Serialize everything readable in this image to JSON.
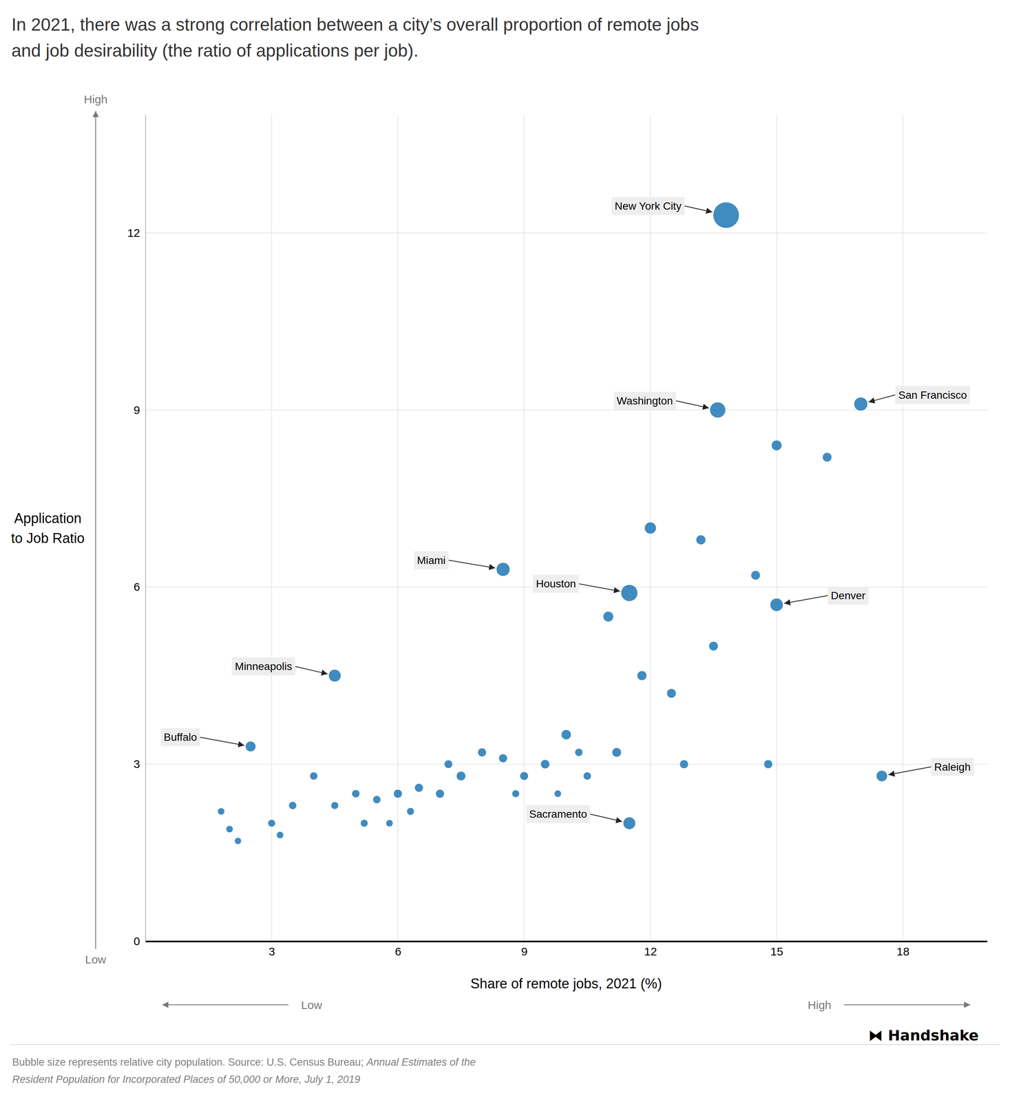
{
  "chart_data": {
    "type": "scatter",
    "title": [
      "In 2021, there was a strong correlation between a city’s overall proportion of remote jobs",
      "and job desirability (the ratio of applications per job)."
    ],
    "xlabel": "Share of remote jobs, 2021 (%)",
    "ylabel": [
      "Application",
      "to Job Ratio"
    ],
    "axis_end_labels": [
      "Low",
      "High"
    ],
    "credit": "⧓ Handshake",
    "note": [
      "Bubble size represents relative city population. Source: U.S. Census Bureau; ",
      "Annual Estimates of the",
      "Resident Population for Incorporated Places of 50,000 or More, July 1, 2019"
    ],
    "labels": [
      "New York City",
      "San Francisco",
      "Washington",
      "Miami",
      "Houston",
      "Denver",
      "Minneapolis",
      "Buffalo",
      "Sacramento",
      "Raleigh",
      null,
      null,
      null,
      null,
      null,
      null,
      null,
      null,
      null,
      null,
      null,
      null,
      null,
      null,
      null,
      null,
      null,
      null,
      null,
      null,
      null,
      null,
      null,
      null,
      null,
      null,
      null,
      null,
      null,
      null,
      null,
      null,
      null,
      null,
      null,
      null,
      null,
      null,
      null
    ],
    "x": [
      13.8,
      17.0,
      13.6,
      8.5,
      11.5,
      15.0,
      4.5,
      2.5,
      11.5,
      17.5,
      15.0,
      16.2,
      12.0,
      13.2,
      14.5,
      11.0,
      13.5,
      11.8,
      12.5,
      10.0,
      11.2,
      12.8,
      14.8,
      9.5,
      8.5,
      8.0,
      7.5,
      7.0,
      6.5,
      6.0,
      5.5,
      5.0,
      5.2,
      3.5,
      3.0,
      3.2,
      2.0,
      2.2,
      1.8,
      9.0,
      10.5,
      4.0,
      4.5,
      5.8,
      6.3,
      9.8,
      10.3,
      7.2,
      8.8
    ],
    "values": [
      12.3,
      9.1,
      9.0,
      6.3,
      5.9,
      5.7,
      4.5,
      3.3,
      2.0,
      2.8,
      8.4,
      8.2,
      7.0,
      6.8,
      6.2,
      5.5,
      5.0,
      4.5,
      4.2,
      3.5,
      3.2,
      3.0,
      3.0,
      3.0,
      3.1,
      3.2,
      2.8,
      2.5,
      2.6,
      2.5,
      2.4,
      2.5,
      2.0,
      2.3,
      2.0,
      1.8,
      1.9,
      1.7,
      2.2,
      2.8,
      2.8,
      2.8,
      2.3,
      2.0,
      2.2,
      2.5,
      3.2,
      3.0,
      2.5
    ],
    "sizes": [
      220,
      60,
      80,
      60,
      90,
      55,
      50,
      35,
      50,
      40,
      35,
      28,
      45,
      30,
      28,
      35,
      28,
      30,
      28,
      32,
      28,
      24,
      24,
      26,
      24,
      24,
      28,
      24,
      24,
      24,
      20,
      20,
      18,
      20,
      18,
      16,
      16,
      15,
      16,
      23,
      20,
      20,
      18,
      16,
      18,
      16,
      20,
      22,
      18
    ],
    "xlim": [
      0,
      20
    ],
    "ylim": [
      0,
      14
    ],
    "xticks": [
      3,
      6,
      9,
      12,
      15,
      18
    ],
    "yticks": [
      0,
      3,
      6,
      9,
      12
    ],
    "grid": true
  }
}
